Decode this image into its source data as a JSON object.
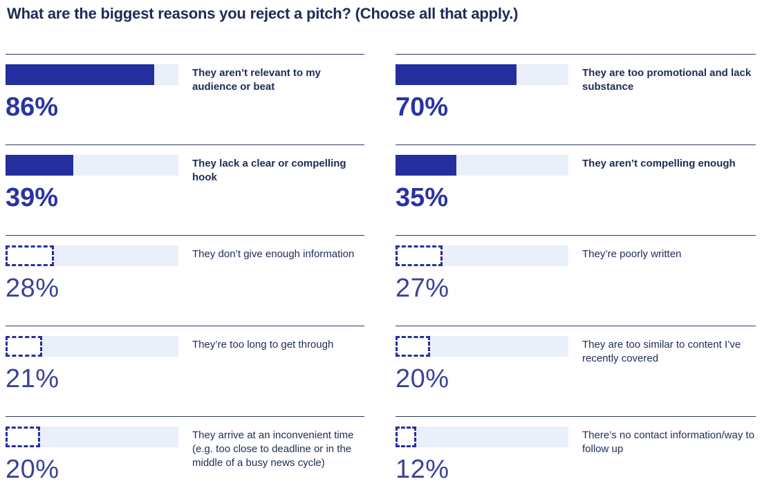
{
  "title": "What are the biggest reasons you reject a pitch? (Choose all that apply.)",
  "colors": {
    "bar_solid": "#242e9e",
    "bar_track": "#e9f0fa",
    "text_navy": "#1f2a56",
    "value_bold": "#2a33a2",
    "value_light": "#3b4299",
    "divider": "#2b3765"
  },
  "chart_data": {
    "type": "bar",
    "orientation": "horizontal",
    "title": "What are the biggest reasons you reject a pitch? (Choose all that apply.)",
    "unit": "%",
    "value_range": [
      0,
      100
    ],
    "grid": false,
    "legend": false,
    "layout": "two-column list; each item has a horizontal bar, a large percentage value below it, and a reason label to the right; top two items per column use solid bars with bold text, remaining items use dashed-outline bars with light text",
    "columns": [
      {
        "position": "left",
        "items": [
          {
            "label": "They aren’t relevant to my audience or beat",
            "value": 86,
            "display": "86%",
            "style": "solid"
          },
          {
            "label": "They lack a clear or compelling hook",
            "value": 39,
            "display": "39%",
            "style": "solid"
          },
          {
            "label": "They don’t give enough information",
            "value": 28,
            "display": "28%",
            "style": "dashed"
          },
          {
            "label": "They’re too long to get through",
            "value": 21,
            "display": "21%",
            "style": "dashed"
          },
          {
            "label": "They arrive at an inconvenient time (e.g. too close to deadline or in the middle of a busy news cycle)",
            "value": 20,
            "display": "20%",
            "style": "dashed"
          }
        ]
      },
      {
        "position": "right",
        "items": [
          {
            "label": "They are too promotional and lack substance",
            "value": 70,
            "display": "70%",
            "style": "solid"
          },
          {
            "label": "They aren’t compelling enough",
            "value": 35,
            "display": "35%",
            "style": "solid"
          },
          {
            "label": "They’re poorly written",
            "value": 27,
            "display": "27%",
            "style": "dashed"
          },
          {
            "label": "They are too similar to content I’ve recently covered",
            "value": 20,
            "display": "20%",
            "style": "dashed"
          },
          {
            "label": "There’s no contact information/way to follow up",
            "value": 12,
            "display": "12%",
            "style": "dashed"
          }
        ]
      }
    ]
  }
}
